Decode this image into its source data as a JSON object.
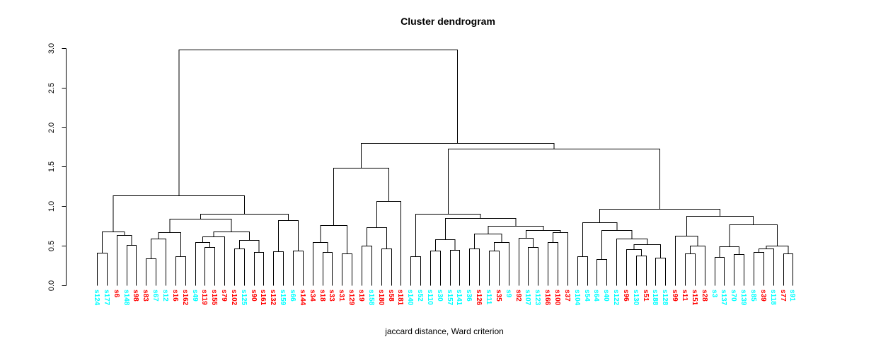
{
  "chart_data": {
    "type": "dendrogram",
    "title": "Cluster dendrogram",
    "xlabel": "jaccard distance, Ward criterion",
    "ylabel": "",
    "ylim": [
      0.0,
      3.0
    ],
    "yticks": [
      "0.0",
      "0.5",
      "1.0",
      "1.5",
      "2.0",
      "2.5",
      "3.0"
    ],
    "grid": false,
    "legend": "none",
    "colors": {
      "red": "#FF0000",
      "cyan": "#00FFFF",
      "line": "#000000"
    },
    "leaves": [
      {
        "label": "s124",
        "color": "cyan"
      },
      {
        "label": "s177",
        "color": "cyan"
      },
      {
        "label": "s6",
        "color": "red"
      },
      {
        "label": "s148",
        "color": "cyan"
      },
      {
        "label": "s98",
        "color": "red"
      },
      {
        "label": "s83",
        "color": "red"
      },
      {
        "label": "s67",
        "color": "cyan"
      },
      {
        "label": "s12",
        "color": "cyan"
      },
      {
        "label": "s16",
        "color": "red"
      },
      {
        "label": "s162",
        "color": "red"
      },
      {
        "label": "s49",
        "color": "cyan"
      },
      {
        "label": "s119",
        "color": "red"
      },
      {
        "label": "s155",
        "color": "red"
      },
      {
        "label": "s79",
        "color": "red"
      },
      {
        "label": "s102",
        "color": "red"
      },
      {
        "label": "s125",
        "color": "cyan"
      },
      {
        "label": "s90",
        "color": "red"
      },
      {
        "label": "s161",
        "color": "red"
      },
      {
        "label": "s132",
        "color": "red"
      },
      {
        "label": "s159",
        "color": "cyan"
      },
      {
        "label": "s66",
        "color": "cyan"
      },
      {
        "label": "s144",
        "color": "red"
      },
      {
        "label": "s34",
        "color": "red"
      },
      {
        "label": "s18",
        "color": "red"
      },
      {
        "label": "s33",
        "color": "red"
      },
      {
        "label": "s31",
        "color": "red"
      },
      {
        "label": "s129",
        "color": "red"
      },
      {
        "label": "s19",
        "color": "red"
      },
      {
        "label": "s158",
        "color": "cyan"
      },
      {
        "label": "s180",
        "color": "red"
      },
      {
        "label": "s58",
        "color": "red"
      },
      {
        "label": "s181",
        "color": "red"
      },
      {
        "label": "s140",
        "color": "cyan"
      },
      {
        "label": "s52",
        "color": "cyan"
      },
      {
        "label": "s110",
        "color": "cyan"
      },
      {
        "label": "s30",
        "color": "cyan"
      },
      {
        "label": "s157",
        "color": "cyan"
      },
      {
        "label": "s141",
        "color": "cyan"
      },
      {
        "label": "s36",
        "color": "cyan"
      },
      {
        "label": "s126",
        "color": "red"
      },
      {
        "label": "s111",
        "color": "cyan"
      },
      {
        "label": "s35",
        "color": "red"
      },
      {
        "label": "s9",
        "color": "cyan"
      },
      {
        "label": "s92",
        "color": "red"
      },
      {
        "label": "s107",
        "color": "cyan"
      },
      {
        "label": "s123",
        "color": "cyan"
      },
      {
        "label": "s166",
        "color": "red"
      },
      {
        "label": "s100",
        "color": "red"
      },
      {
        "label": "s37",
        "color": "red"
      },
      {
        "label": "s104",
        "color": "cyan"
      },
      {
        "label": "s54",
        "color": "cyan"
      },
      {
        "label": "s64",
        "color": "cyan"
      },
      {
        "label": "s40",
        "color": "cyan"
      },
      {
        "label": "s122",
        "color": "cyan"
      },
      {
        "label": "s96",
        "color": "red"
      },
      {
        "label": "s130",
        "color": "cyan"
      },
      {
        "label": "s51",
        "color": "red"
      },
      {
        "label": "s188",
        "color": "cyan"
      },
      {
        "label": "s128",
        "color": "cyan"
      },
      {
        "label": "s99",
        "color": "red"
      },
      {
        "label": "s11",
        "color": "red"
      },
      {
        "label": "s151",
        "color": "red"
      },
      {
        "label": "s28",
        "color": "red"
      },
      {
        "label": "s3",
        "color": "cyan"
      },
      {
        "label": "s137",
        "color": "cyan"
      },
      {
        "label": "s70",
        "color": "cyan"
      },
      {
        "label": "s139",
        "color": "cyan"
      },
      {
        "label": "s85",
        "color": "cyan"
      },
      {
        "label": "s39",
        "color": "red"
      },
      {
        "label": "s118",
        "color": "cyan"
      },
      {
        "label": "s77",
        "color": "red"
      },
      {
        "label": "s91",
        "color": "cyan"
      }
    ],
    "merge_tree": [
      [
        [
          [
            0,
            1,
            0.41
          ],
          [
            2,
            [
              3,
              4,
              0.51
            ],
            0.64
          ],
          0.68
        ],
        [
          [
            [
              [
                [
                  5,
                  6,
                  0.34
                ],
                7,
                0.59
              ],
              [
                8,
                9,
                0.37
              ],
              0.67
            ],
            [
              [
                [
                  10,
                  [
                    11,
                    12,
                    0.48
                  ],
                  0.55
                ],
                13,
                0.62
              ],
              [
                [
                  14,
                  15,
                  0.47
                ],
                [
                  16,
                  17,
                  0.42
                ],
                0.57
              ],
              0.68
            ],
            0.84
          ],
          [
            [
              18,
              19,
              0.43
            ],
            [
              20,
              21,
              0.44
            ],
            0.82
          ],
          0.9
        ],
        1.14
      ],
      [
        [
          [
            [
              22,
              [
                23,
                24,
                0.42
              ],
              0.55
            ],
            [
              25,
              26,
              0.4
            ],
            0.76
          ],
          [
            [
              [
                27,
                28,
                0.5
              ],
              [
                29,
                30,
                0.47
              ],
              0.73
            ],
            31,
            1.07
          ],
          1.49
        ],
        [
          [
            [
              32,
              33,
              0.37
            ],
            [
              [
                [
                  34,
                  35,
                  0.44
                ],
                [
                  36,
                  37,
                  0.45
                ],
                0.58
              ],
              [
                [
                  [
                    38,
                    39,
                    0.47
                  ],
                  [
                    [
                      40,
                      41,
                      0.44
                    ],
                    42,
                    0.55
                  ],
                  0.65
                ],
                [
                  [
                    43,
                    [
                      44,
                      45,
                      0.48
                    ],
                    0.6
                  ],
                  [
                    [
                      46,
                      47,
                      0.55
                    ],
                    48,
                    0.67
                  ],
                  0.7
                ],
                0.75
              ],
              0.85
            ],
            0.9
          ],
          [
            [
              [
                49,
                50,
                0.37
              ],
              [
                [
                  51,
                  52,
                  0.33
                ],
                [
                  53,
                  [
                    [
                      54,
                      [
                        55,
                        56,
                        0.38
                      ],
                      0.46
                    ],
                    [
                      57,
                      58,
                      0.35
                    ],
                    0.52
                  ],
                  0.59
                ],
                0.7
              ],
              0.8
            ],
            [
              [
                59,
                [
                  [
                    60,
                    61,
                    0.4
                  ],
                  62,
                  0.5
                ],
                0.63
              ],
              [
                [
                  [
                    63,
                    64,
                    0.36
                  ],
                  [
                    65,
                    66,
                    0.39
                  ],
                  0.49
                ],
                [
                  [
                    [
                      67,
                      68,
                      0.42
                    ],
                    69,
                    0.47
                  ],
                  [
                    70,
                    71,
                    0.4
                  ],
                  0.5
                ],
                0.77
              ],
              0.88
            ],
            0.97
          ],
          1.73
        ],
        1.8
      ],
      2.98
    ]
  }
}
